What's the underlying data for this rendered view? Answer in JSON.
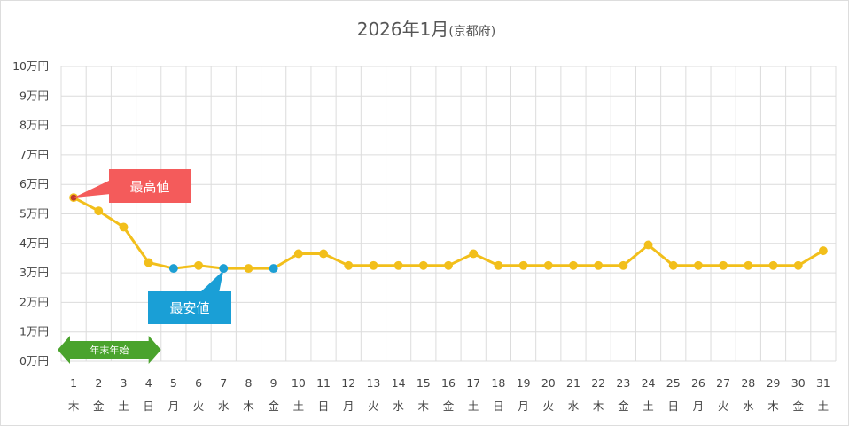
{
  "chart_data": {
    "type": "line",
    "title": "2026年1月",
    "subtitle": "(京都府)",
    "ylim": [
      0,
      100000
    ],
    "y_ticks": [
      {
        "value": 0,
        "label": "0万円"
      },
      {
        "value": 10000,
        "label": "1万円"
      },
      {
        "value": 20000,
        "label": "2万円"
      },
      {
        "value": 30000,
        "label": "3万円"
      },
      {
        "value": 40000,
        "label": "4万円"
      },
      {
        "value": 50000,
        "label": "5万円"
      },
      {
        "value": 60000,
        "label": "6万円"
      },
      {
        "value": 70000,
        "label": "7万円"
      },
      {
        "value": 80000,
        "label": "8万円"
      },
      {
        "value": 90000,
        "label": "9万円"
      },
      {
        "value": 100000,
        "label": "10万円"
      }
    ],
    "x": [
      "1",
      "2",
      "3",
      "4",
      "5",
      "6",
      "7",
      "8",
      "9",
      "10",
      "11",
      "12",
      "13",
      "14",
      "15",
      "16",
      "17",
      "18",
      "19",
      "20",
      "21",
      "22",
      "23",
      "24",
      "25",
      "26",
      "27",
      "28",
      "29",
      "30",
      "31"
    ],
    "weekdays": [
      "木",
      "金",
      "土",
      "日",
      "月",
      "火",
      "水",
      "木",
      "金",
      "土",
      "日",
      "月",
      "火",
      "水",
      "木",
      "金",
      "土",
      "日",
      "月",
      "火",
      "水",
      "木",
      "金",
      "土",
      "日",
      "月",
      "火",
      "水",
      "木",
      "金",
      "土"
    ],
    "values": [
      55500,
      51000,
      45500,
      33500,
      31500,
      32500,
      31500,
      31500,
      31500,
      36500,
      36500,
      32500,
      32500,
      32500,
      32500,
      32500,
      36500,
      32500,
      32500,
      32500,
      32500,
      32500,
      32500,
      39500,
      32500,
      32500,
      32500,
      32500,
      32500,
      32500,
      37500
    ],
    "highlight_low_indices": [
      4,
      6,
      8
    ],
    "highlight_high_indices": [
      0
    ],
    "annotations": {
      "high_label": "最高値",
      "low_label": "最安値",
      "period_label": "年末年始"
    },
    "colors": {
      "line": "#f2bf1b",
      "low_point": "#1d9fd4",
      "high_point": "#c0392b",
      "high_callout": "#f45b5b",
      "low_callout": "#1a9fd6",
      "period_tag": "#4aa32d",
      "grid": "#dcdcdc"
    },
    "grid": true
  }
}
